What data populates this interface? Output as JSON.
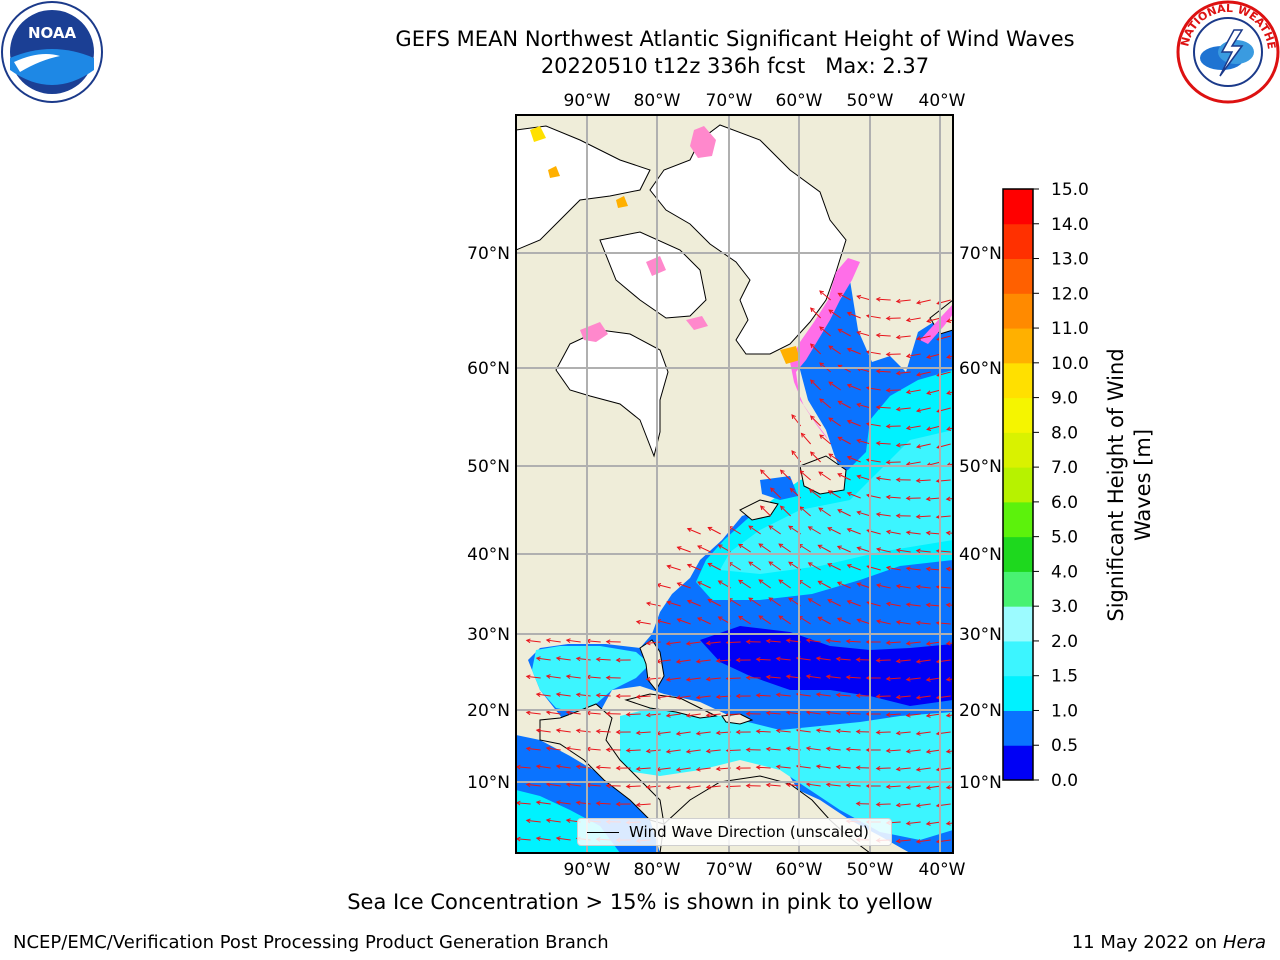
{
  "title": {
    "line1": "GEFS MEAN Northwest Atlantic Significant Height of Wind Waves",
    "line2": "20220510 t12z 336h fcst   Max: 2.37"
  },
  "logos": {
    "left": "noaa-logo",
    "right": "nws-logo"
  },
  "map": {
    "top_lon_labels": [
      "90°W",
      "80°W",
      "70°W",
      "60°W",
      "50°W",
      "40°W"
    ],
    "bottom_lon_labels": [
      "90°W",
      "80°W",
      "70°W",
      "60°W",
      "50°W",
      "40°W"
    ],
    "left_lat_labels": [
      "70°N",
      "60°N",
      "50°N",
      "40°N",
      "30°N",
      "20°N",
      "10°N"
    ],
    "right_lat_labels": [
      "70°N",
      "60°N",
      "50°N",
      "40°N",
      "30°N",
      "20°N",
      "10°N"
    ],
    "land_color": "#efedd9",
    "ice_free_land_color": "#ffffff",
    "arrow_color": "#e8141b",
    "legend": "Wind Wave Direction (unscaled)"
  },
  "colorbar": {
    "label": "Significant Height of Wind Waves [m]",
    "ticks": [
      "0.0",
      "0.5",
      "1.0",
      "1.5",
      "2.0",
      "3.0",
      "4.0",
      "5.0",
      "6.0",
      "7.0",
      "8.0",
      "9.0",
      "10.0",
      "11.0",
      "12.0",
      "13.0",
      "14.0",
      "15.0"
    ],
    "colors": [
      "#0000f5",
      "#0a73ff",
      "#00f2ff",
      "#3cf5ff",
      "#9cfbff",
      "#48f272",
      "#1ed81e",
      "#5cf20c",
      "#b7f200",
      "#d9f200",
      "#f5f500",
      "#ffe000",
      "#ffb000",
      "#ff8a00",
      "#ff6000",
      "#ff3000",
      "#ff0000"
    ]
  },
  "caption": "Sea Ice Concentration > 15% is shown in pink to yellow",
  "footer": {
    "left": "NCEP/EMC/Verification Post Processing Product Generation Branch",
    "right_date": "11 May 2022 on",
    "right_host": "Hera"
  }
}
